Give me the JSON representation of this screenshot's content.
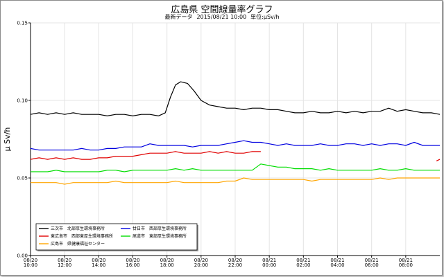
{
  "chart_data": {
    "type": "line",
    "title": "広島県 空間線量率グラフ",
    "subtitle_prefix": "最新データ",
    "latest_datetime": "2015/08/21 10:00",
    "unit_label": "単位:μSv/h",
    "ylabel": "μ Sv/h",
    "ylim": [
      0.0,
      0.15
    ],
    "yticks": [
      "0.00",
      "0.05",
      "0.10",
      "0.15"
    ],
    "ytick_values": [
      0.0,
      0.05,
      0.1,
      0.15
    ],
    "x_ticks": [
      {
        "date": "08/20",
        "time": "10:00"
      },
      {
        "date": "08/20",
        "time": "12:00"
      },
      {
        "date": "08/20",
        "time": "14:00"
      },
      {
        "date": "08/20",
        "time": "16:00"
      },
      {
        "date": "08/20",
        "time": "18:00"
      },
      {
        "date": "08/20",
        "time": "20:00"
      },
      {
        "date": "08/20",
        "time": "22:00"
      },
      {
        "date": "08/21",
        "time": "00:00"
      },
      {
        "date": "08/21",
        "time": "02:00"
      },
      {
        "date": "08/21",
        "time": "04:00"
      },
      {
        "date": "08/21",
        "time": "06:00"
      },
      {
        "date": "08/21",
        "time": "08:00"
      }
    ],
    "x_range_hours": [
      0,
      24
    ],
    "grid": true,
    "legend_position": "bottom-left",
    "series": [
      {
        "name": "三次市　北部厚生環境事務所",
        "color": "#000000",
        "points": [
          [
            0,
            0.091
          ],
          [
            0.5,
            0.092
          ],
          [
            1,
            0.091
          ],
          [
            1.5,
            0.092
          ],
          [
            2,
            0.091
          ],
          [
            2.5,
            0.092
          ],
          [
            3,
            0.091
          ],
          [
            3.5,
            0.091
          ],
          [
            4,
            0.091
          ],
          [
            4.5,
            0.09
          ],
          [
            5,
            0.091
          ],
          [
            5.5,
            0.091
          ],
          [
            6,
            0.09
          ],
          [
            6.5,
            0.091
          ],
          [
            7,
            0.091
          ],
          [
            7.5,
            0.09
          ],
          [
            7.9,
            0.092
          ],
          [
            8.2,
            0.102
          ],
          [
            8.5,
            0.11
          ],
          [
            8.8,
            0.112
          ],
          [
            9.2,
            0.111
          ],
          [
            9.6,
            0.106
          ],
          [
            10,
            0.1
          ],
          [
            10.5,
            0.097
          ],
          [
            11,
            0.096
          ],
          [
            11.5,
            0.095
          ],
          [
            12,
            0.095
          ],
          [
            12.5,
            0.094
          ],
          [
            13,
            0.095
          ],
          [
            13.5,
            0.095
          ],
          [
            14,
            0.094
          ],
          [
            14.5,
            0.094
          ],
          [
            15,
            0.093
          ],
          [
            15.5,
            0.092
          ],
          [
            16,
            0.092
          ],
          [
            16.5,
            0.093
          ],
          [
            17,
            0.092
          ],
          [
            17.5,
            0.092
          ],
          [
            18,
            0.093
          ],
          [
            18.5,
            0.092
          ],
          [
            19,
            0.093
          ],
          [
            19.5,
            0.092
          ],
          [
            20,
            0.093
          ],
          [
            20.5,
            0.093
          ],
          [
            21,
            0.095
          ],
          [
            21.5,
            0.093
          ],
          [
            22,
            0.094
          ],
          [
            22.5,
            0.093
          ],
          [
            23,
            0.092
          ],
          [
            23.5,
            0.092
          ],
          [
            24,
            0.091
          ]
        ]
      },
      {
        "name": "東広島市　西部東厚生環境事務所",
        "color": "#e00000",
        "points": [
          [
            0,
            0.062
          ],
          [
            0.5,
            0.063
          ],
          [
            1,
            0.062
          ],
          [
            1.5,
            0.063
          ],
          [
            2,
            0.062
          ],
          [
            2.5,
            0.063
          ],
          [
            3,
            0.062
          ],
          [
            3.5,
            0.062
          ],
          [
            4,
            0.063
          ],
          [
            4.5,
            0.063
          ],
          [
            5,
            0.064
          ],
          [
            5.5,
            0.064
          ],
          [
            6,
            0.064
          ],
          [
            6.5,
            0.065
          ],
          [
            7,
            0.066
          ],
          [
            7.5,
            0.066
          ],
          [
            8,
            0.066
          ],
          [
            8.5,
            0.067
          ],
          [
            9,
            0.066
          ],
          [
            9.5,
            0.066
          ],
          [
            10,
            0.066
          ],
          [
            10.5,
            0.067
          ],
          [
            11,
            0.066
          ],
          [
            11.5,
            0.067
          ],
          [
            12,
            0.066
          ],
          [
            12.5,
            0.066
          ],
          [
            13,
            0.067
          ],
          [
            13.5,
            0.067
          ],
          [
            23.8,
            0.061
          ],
          [
            24,
            0.062
          ]
        ]
      },
      {
        "name": "広島市　県健康福祉センター",
        "color": "#ffa500",
        "points": [
          [
            0,
            0.047
          ],
          [
            0.5,
            0.047
          ],
          [
            1,
            0.047
          ],
          [
            1.5,
            0.047
          ],
          [
            2,
            0.046
          ],
          [
            2.5,
            0.047
          ],
          [
            3,
            0.047
          ],
          [
            3.5,
            0.047
          ],
          [
            4,
            0.047
          ],
          [
            4.5,
            0.047
          ],
          [
            5,
            0.048
          ],
          [
            5.5,
            0.047
          ],
          [
            6,
            0.047
          ],
          [
            6.5,
            0.047
          ],
          [
            7,
            0.047
          ],
          [
            7.5,
            0.047
          ],
          [
            8,
            0.047
          ],
          [
            8.5,
            0.048
          ],
          [
            9,
            0.047
          ],
          [
            9.5,
            0.047
          ],
          [
            10,
            0.047
          ],
          [
            10.5,
            0.047
          ],
          [
            11,
            0.047
          ],
          [
            11.5,
            0.048
          ],
          [
            12,
            0.048
          ],
          [
            12.5,
            0.05
          ],
          [
            13,
            0.049
          ],
          [
            13.5,
            0.049
          ],
          [
            14,
            0.049
          ],
          [
            14.5,
            0.049
          ],
          [
            15,
            0.049
          ],
          [
            15.5,
            0.049
          ],
          [
            16,
            0.049
          ],
          [
            16.5,
            0.048
          ],
          [
            17,
            0.049
          ],
          [
            17.5,
            0.049
          ],
          [
            18,
            0.049
          ],
          [
            18.5,
            0.049
          ],
          [
            19,
            0.049
          ],
          [
            19.5,
            0.049
          ],
          [
            20,
            0.049
          ],
          [
            20.5,
            0.05
          ],
          [
            21,
            0.049
          ],
          [
            21.5,
            0.05
          ],
          [
            22,
            0.05
          ],
          [
            22.5,
            0.05
          ],
          [
            23,
            0.05
          ],
          [
            23.5,
            0.05
          ],
          [
            24,
            0.05
          ]
        ]
      },
      {
        "name": "廿日市　西部厚生環境事務所",
        "color": "#0000e0",
        "points": [
          [
            0,
            0.069
          ],
          [
            0.5,
            0.068
          ],
          [
            1,
            0.068
          ],
          [
            1.5,
            0.068
          ],
          [
            2,
            0.068
          ],
          [
            2.5,
            0.068
          ],
          [
            3,
            0.069
          ],
          [
            3.5,
            0.068
          ],
          [
            4,
            0.068
          ],
          [
            4.5,
            0.069
          ],
          [
            5,
            0.069
          ],
          [
            5.5,
            0.07
          ],
          [
            6,
            0.07
          ],
          [
            6.5,
            0.07
          ],
          [
            7,
            0.072
          ],
          [
            7.5,
            0.071
          ],
          [
            8,
            0.071
          ],
          [
            8.5,
            0.071
          ],
          [
            9,
            0.071
          ],
          [
            9.5,
            0.07
          ],
          [
            10,
            0.071
          ],
          [
            10.5,
            0.071
          ],
          [
            11,
            0.071
          ],
          [
            11.5,
            0.072
          ],
          [
            12,
            0.073
          ],
          [
            12.5,
            0.074
          ],
          [
            13,
            0.073
          ],
          [
            13.5,
            0.073
          ],
          [
            14,
            0.072
          ],
          [
            14.5,
            0.071
          ],
          [
            15,
            0.072
          ],
          [
            15.5,
            0.071
          ],
          [
            16,
            0.071
          ],
          [
            16.5,
            0.071
          ],
          [
            17,
            0.072
          ],
          [
            17.5,
            0.071
          ],
          [
            18,
            0.071
          ],
          [
            18.5,
            0.072
          ],
          [
            19,
            0.072
          ],
          [
            19.5,
            0.071
          ],
          [
            20,
            0.072
          ],
          [
            20.5,
            0.071
          ],
          [
            21,
            0.072
          ],
          [
            21.5,
            0.072
          ],
          [
            22,
            0.071
          ],
          [
            22.5,
            0.073
          ],
          [
            23,
            0.071
          ],
          [
            23.5,
            0.071
          ],
          [
            24,
            0.071
          ]
        ]
      },
      {
        "name": "尾道市　東部厚生環境事務所",
        "color": "#00dd00",
        "points": [
          [
            0,
            0.054
          ],
          [
            0.5,
            0.054
          ],
          [
            1,
            0.054
          ],
          [
            1.5,
            0.055
          ],
          [
            2,
            0.054
          ],
          [
            2.5,
            0.054
          ],
          [
            3,
            0.054
          ],
          [
            3.5,
            0.054
          ],
          [
            4,
            0.054
          ],
          [
            4.5,
            0.055
          ],
          [
            5,
            0.055
          ],
          [
            5.5,
            0.054
          ],
          [
            6,
            0.055
          ],
          [
            6.5,
            0.055
          ],
          [
            7,
            0.055
          ],
          [
            7.5,
            0.055
          ],
          [
            8,
            0.055
          ],
          [
            8.5,
            0.056
          ],
          [
            9,
            0.055
          ],
          [
            9.5,
            0.056
          ],
          [
            10,
            0.055
          ],
          [
            10.5,
            0.055
          ],
          [
            11,
            0.055
          ],
          [
            11.5,
            0.055
          ],
          [
            12,
            0.055
          ],
          [
            12.5,
            0.055
          ],
          [
            13,
            0.055
          ],
          [
            13.5,
            0.059
          ],
          [
            14,
            0.058
          ],
          [
            14.5,
            0.057
          ],
          [
            15,
            0.057
          ],
          [
            15.5,
            0.056
          ],
          [
            16,
            0.056
          ],
          [
            16.5,
            0.056
          ],
          [
            17,
            0.055
          ],
          [
            17.5,
            0.056
          ],
          [
            18,
            0.055
          ],
          [
            18.5,
            0.055
          ],
          [
            19,
            0.055
          ],
          [
            19.5,
            0.055
          ],
          [
            20,
            0.055
          ],
          [
            20.5,
            0.056
          ],
          [
            21,
            0.055
          ],
          [
            21.5,
            0.055
          ],
          [
            22,
            0.056
          ],
          [
            22.5,
            0.055
          ],
          [
            23,
            0.055
          ],
          [
            23.5,
            0.055
          ],
          [
            24,
            0.055
          ]
        ]
      }
    ]
  }
}
